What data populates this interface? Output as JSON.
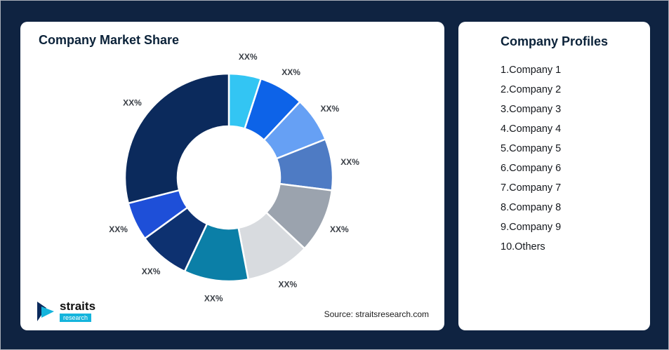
{
  "page": {
    "background": "#0F2341"
  },
  "left_card": {
    "title": "Company Market Share",
    "source": "Source: straitsresearch.com"
  },
  "logo": {
    "brand": "straits",
    "sub": "research"
  },
  "right_card": {
    "title": "Company Profiles",
    "items": [
      "1.Company 1",
      "2.Company 2",
      "3.Company 3",
      "4.Company 4",
      "5.Company 5",
      "6.Company 6",
      "7.Company 7",
      "8.Company 8",
      "9.Company 9",
      "10.Others"
    ]
  },
  "chart_data": {
    "type": "pie",
    "subtype": "donut",
    "title": "Company Market Share",
    "labels": [
      "Company 1",
      "Company 2",
      "Company 3",
      "Company 4",
      "Company 5",
      "Company 6",
      "Company 7",
      "Company 8",
      "Company 9",
      "Others"
    ],
    "values": [
      5,
      7,
      7,
      8,
      10,
      10,
      10,
      8,
      6,
      29
    ],
    "data_labels": [
      "XX%",
      "XX%",
      "XX%",
      "XX%",
      "XX%",
      "XX%",
      "XX%",
      "XX%",
      "XX%",
      "XX%"
    ],
    "colors": [
      "#33C5F3",
      "#0D63E8",
      "#66A0F4",
      "#4E7BC4",
      "#9BA3AE",
      "#D8DBDF",
      "#0B7FA7",
      "#0D3170",
      "#1E4FD8",
      "#0B2A5C"
    ],
    "donut_hole_ratio": 0.49,
    "start_angle_deg": 0,
    "direction": "clockwise",
    "label_color": "#3a3f46",
    "legend": "none",
    "grid": false
  }
}
